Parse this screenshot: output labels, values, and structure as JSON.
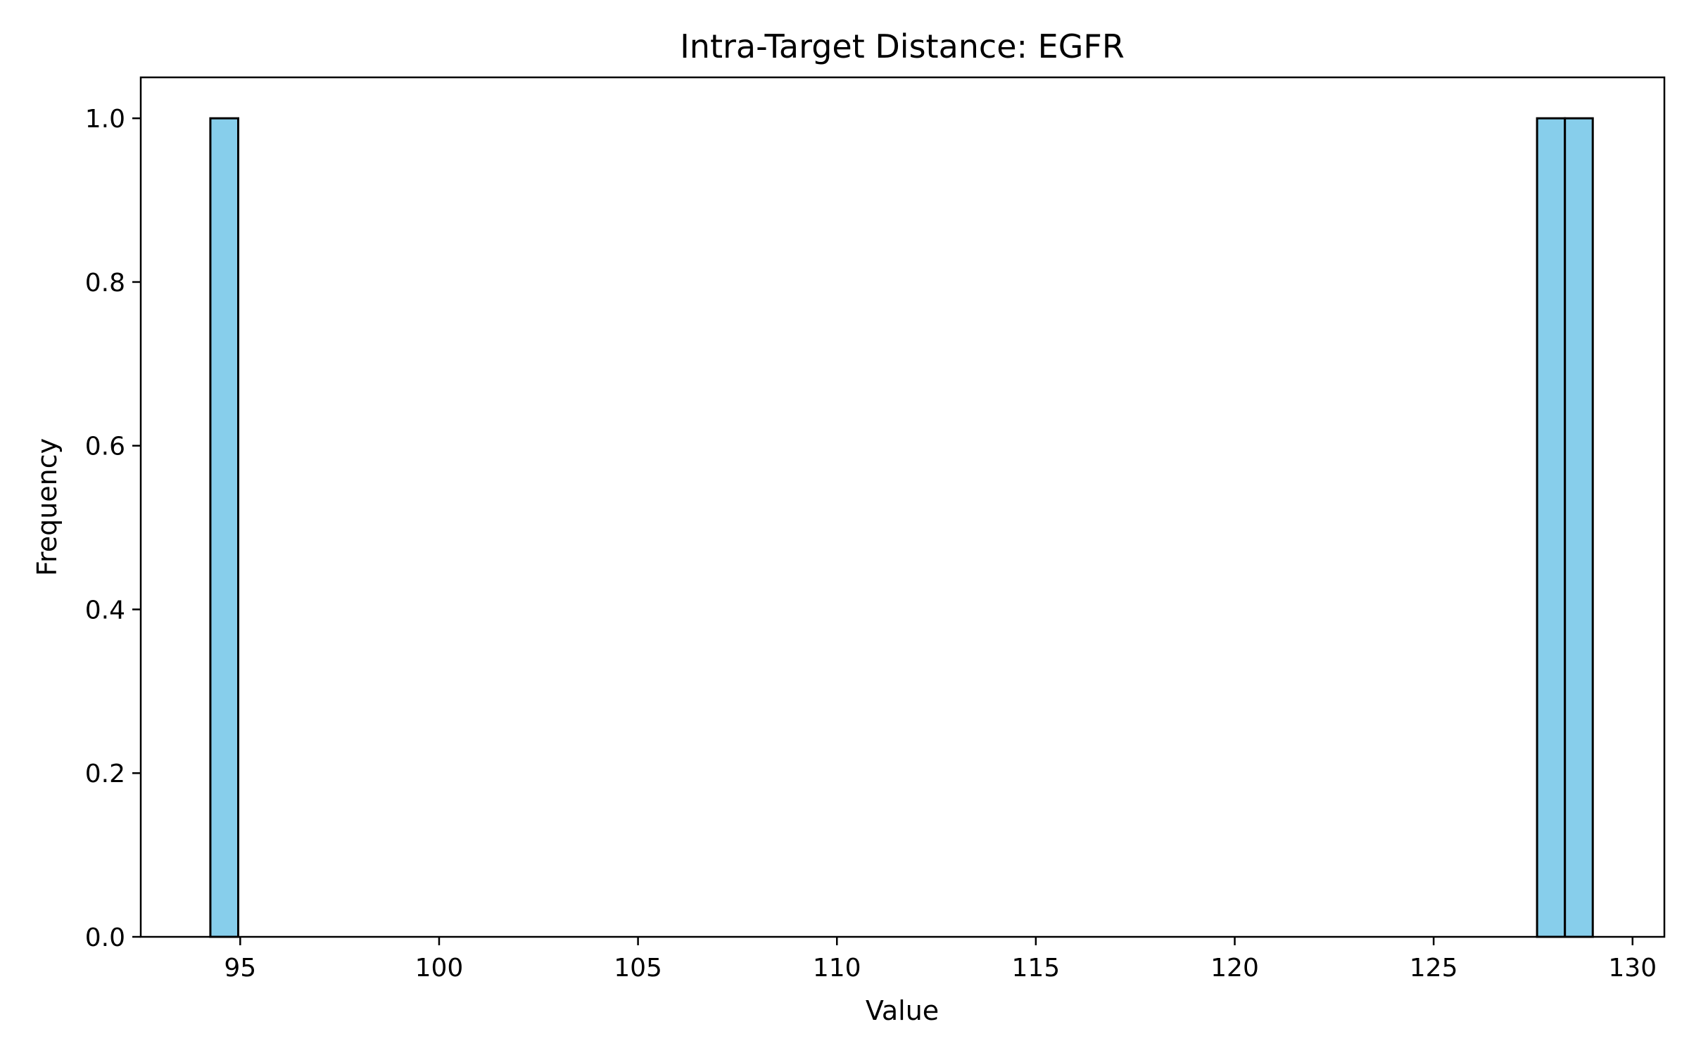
{
  "chart_data": {
    "type": "bar",
    "title": "Intra-Target Distance: EGFR",
    "xlabel": "Value",
    "ylabel": "Frequency",
    "xlim": [
      92.5,
      130.8
    ],
    "ylim": [
      0.0,
      1.05
    ],
    "x_ticks": [
      "95",
      "100",
      "105",
      "110",
      "115",
      "120",
      "125",
      "130"
    ],
    "y_ticks": [
      "0.0",
      "0.2",
      "0.4",
      "0.6",
      "0.8",
      "1.0"
    ],
    "bins": [
      {
        "x_start": 94.25,
        "x_end": 94.95,
        "value": 1.0
      },
      {
        "x_start": 127.6,
        "x_end": 128.3,
        "value": 1.0
      },
      {
        "x_start": 128.3,
        "x_end": 129.0,
        "value": 1.0
      }
    ],
    "bar_color": "#87ceeb",
    "edge_color": "#000000",
    "grid": false,
    "legend": "none"
  }
}
